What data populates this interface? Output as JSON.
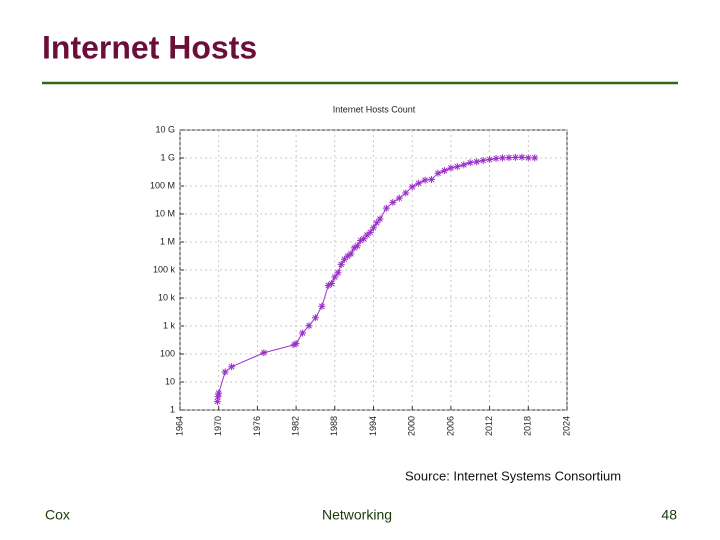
{
  "header": {
    "title": "Internet Hosts"
  },
  "chart_data": {
    "type": "line",
    "title": "Internet Hosts Count",
    "x": [
      1969.8,
      1969.9,
      1970,
      1971,
      1972,
      1977,
      1981.7,
      1982,
      1983,
      1984,
      1985,
      1986,
      1987,
      1987.5,
      1988,
      1988.5,
      1989,
      1989.5,
      1990,
      1990.5,
      1991,
      1991.5,
      1992,
      1992.5,
      1993,
      1993.5,
      1994,
      1994.5,
      1995,
      1996,
      1997,
      1998,
      1999,
      2000,
      2001,
      2002,
      2003,
      2004,
      2005,
      2006,
      2007,
      2008,
      2009,
      2010,
      2011,
      2012,
      2013,
      2014,
      2015,
      2016,
      2017,
      2018,
      2019
    ],
    "series": [
      {
        "name": "Internet Hosts Count",
        "color": "#9b30c8",
        "values": [
          2,
          3,
          4,
          23,
          35,
          111,
          213,
          235,
          562,
          1024,
          1961,
          5089,
          28174,
          33000,
          56000,
          80000,
          159000,
          243000,
          313000,
          376000,
          617000,
          727000,
          1136000,
          1313000,
          1776000,
          2217000,
          3212000,
          4852000,
          6642000,
          16146000,
          26053000,
          36739000,
          56218000,
          93047785,
          125888197,
          162128493,
          171638297,
          285139107,
          353284187,
          439286364,
          489774269,
          570937778,
          681064561,
          732740444,
          818374269,
          888239420,
          963518598,
          1010251829,
          1033836245,
          1048766623,
          1062660523,
          1015000000,
          1013000000
        ]
      }
    ],
    "xlim": [
      1964,
      2024
    ],
    "xticks": [
      1964,
      1970,
      1976,
      1982,
      1988,
      1994,
      2000,
      2006,
      2012,
      2018,
      2024
    ],
    "ylim": [
      1,
      10000000000
    ],
    "ylog": true,
    "yticks": [
      1,
      10,
      100,
      {
        "value": 1000,
        "label": "1 k"
      },
      {
        "value": 10000,
        "label": "10 k"
      },
      {
        "value": 100000,
        "label": "100 k"
      },
      {
        "value": 1000000,
        "label": "1 M"
      },
      {
        "value": 10000000,
        "label": "10 M"
      },
      {
        "value": 100000000,
        "label": "100 M"
      },
      {
        "value": 1000000000,
        "label": "1 G"
      },
      {
        "value": 10000000000,
        "label": "10 G"
      }
    ],
    "grid": true
  },
  "source": "Source: Internet Systems Consortium",
  "footer": {
    "left": "Cox",
    "center": "Networking",
    "page": "48"
  }
}
